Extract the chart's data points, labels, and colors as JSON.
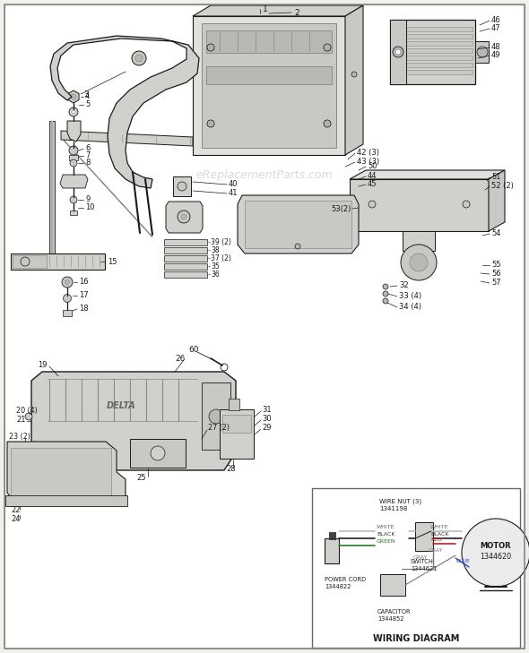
{
  "bg_color": "#f0f0ec",
  "line_color": "#1a1a1a",
  "watermark": "eReplacementParts.com",
  "wiring": {
    "title": "WIRING DIAGRAM",
    "wire_nut": "WIRE NUT (3)\n1341198",
    "power_cord": "POWER CORD\n1344822",
    "switch_label": "SWITCH\n1344621",
    "capacitor": "CAPACITOR\n1344852",
    "motor": "MOTOR\n1344620"
  }
}
